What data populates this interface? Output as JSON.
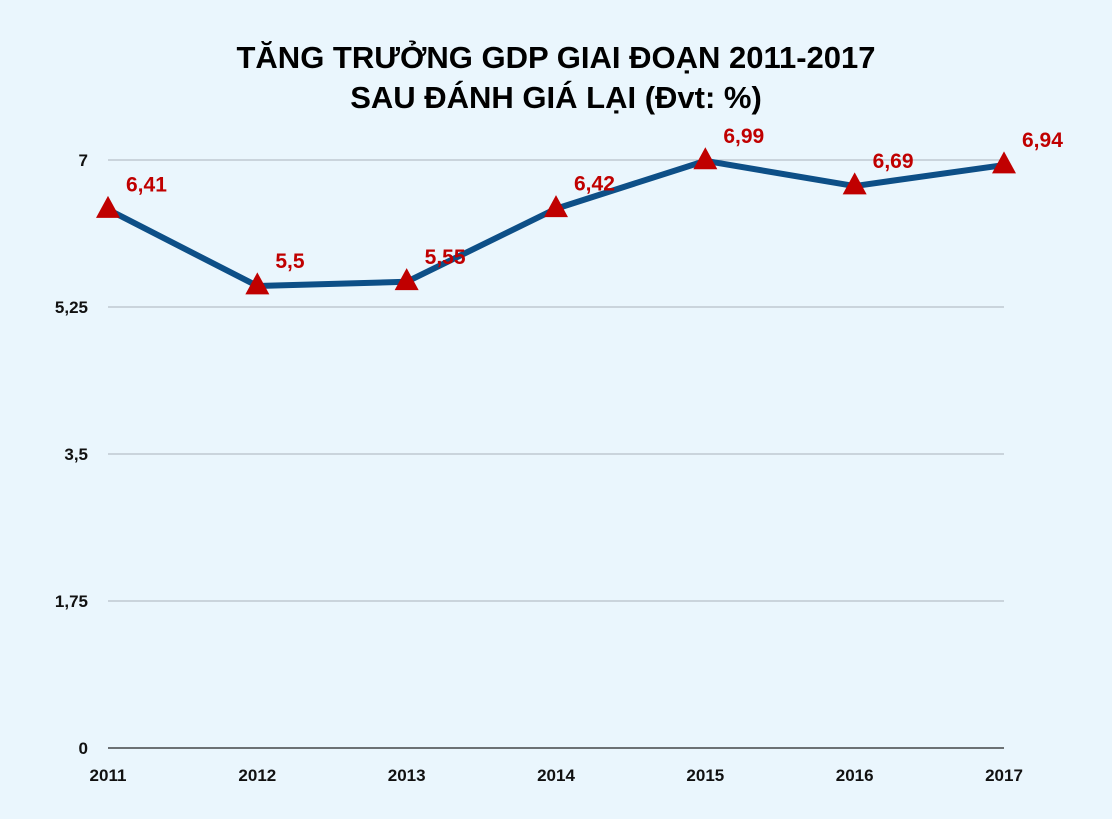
{
  "chart_data": {
    "type": "line",
    "title": "TĂNG TRƯỞNG GDP GIAI ĐOẠN 2011-2017",
    "subtitle": "SAU ĐÁNH GIÁ LẠI (Đvt: %)",
    "categories": [
      "2011",
      "2012",
      "2013",
      "2014",
      "2015",
      "2016",
      "2017"
    ],
    "series": [
      {
        "values": [
          6.41,
          5.5,
          5.55,
          6.42,
          6.99,
          6.69,
          6.94
        ],
        "data_labels": [
          "6,41",
          "5,5",
          "5,55",
          "6,42",
          "6,99",
          "6,69",
          "6,94"
        ],
        "line_color": "#0d4f87",
        "marker": "triangle",
        "marker_color": "#c00000"
      }
    ],
    "yticks": [
      0,
      1.75,
      3.5,
      5.25,
      7
    ],
    "ytick_labels": [
      "0",
      "1,75",
      "3,5",
      "5,25",
      "7"
    ],
    "ylim": [
      0,
      7
    ],
    "grid": true,
    "label_color": "#c00000",
    "background": "#eaf6fd"
  }
}
